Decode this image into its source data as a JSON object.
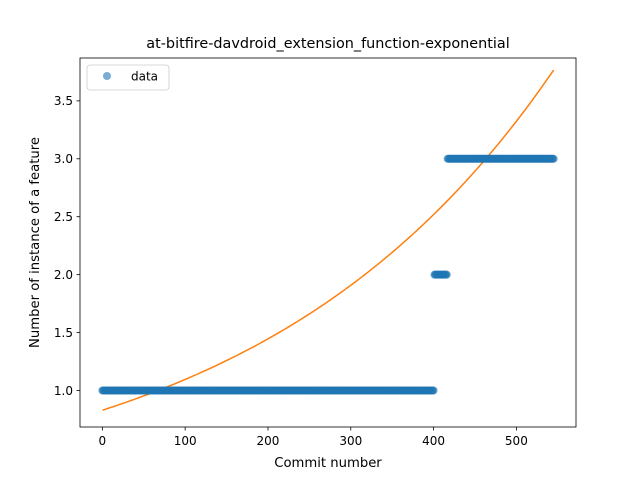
{
  "chart_data": {
    "type": "scatter",
    "title": "at-bitfire-davdroid_extension_function-exponential",
    "xlabel": "Commit number",
    "ylabel": "Number of instance of a feature",
    "xlim": [
      -27,
      572
    ],
    "ylim": [
      0.685,
      3.87
    ],
    "xticks": [
      0,
      100,
      200,
      300,
      400,
      500
    ],
    "yticks": [
      1.0,
      1.5,
      2.0,
      2.5,
      3.0,
      3.5
    ],
    "xtick_labels": [
      "0",
      "100",
      "200",
      "300",
      "400",
      "500"
    ],
    "ytick_labels": [
      "1.0",
      "1.5",
      "2.0",
      "2.5",
      "3.0",
      "3.5"
    ],
    "grid": false,
    "legend": {
      "position": "top-left",
      "entries": [
        "data"
      ]
    },
    "series": [
      {
        "name": "data",
        "kind": "scatter",
        "color": "#1f77b4",
        "segments": [
          {
            "x_start": 0,
            "x_end": 400,
            "y": 1.0
          },
          {
            "x_start": 401,
            "x_end": 416,
            "y": 2.0
          },
          {
            "x_start": 417,
            "x_end": 545,
            "y": 3.0
          }
        ]
      },
      {
        "kind": "line",
        "color": "#ff7f0e",
        "model": "exponential",
        "formula": "y = a * exp(b * x)",
        "a": 0.83,
        "b": 0.002775,
        "x_start": 0,
        "x_end": 545
      }
    ]
  }
}
